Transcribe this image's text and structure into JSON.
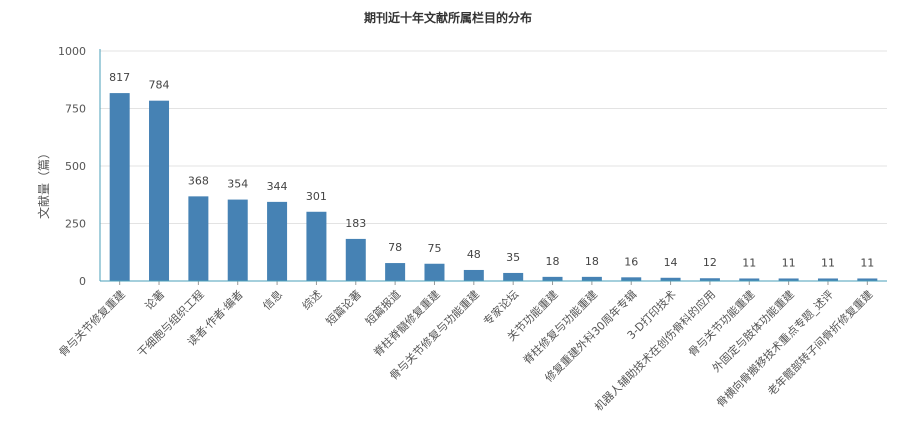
{
  "chart_data": {
    "type": "bar",
    "title": "期刊近十年文献所属栏目的分布",
    "ylabel": "文献量（篇）",
    "xlabel": "",
    "ylim": [
      0,
      1000
    ],
    "yticks": [
      0,
      250,
      500,
      750,
      1000
    ],
    "grid": true,
    "bar_color": "#4682b4",
    "categories": [
      "骨与关节修复重建",
      "论著",
      "干细胞与组织工程",
      "读者·作者·编者",
      "信息",
      "综述",
      "短篇论著",
      "短篇报道",
      "脊柱脊髓修复重建",
      "骨与关节修复与功能重建",
      "专家论坛",
      "关节功能重建",
      "脊柱修复与功能重建",
      "修复重建外科30周年专辑",
      "3-D打印技术",
      "机器人辅助技术在创伤骨科的应用",
      "骨与关节功能重建",
      "外固定与肢体功能重建",
      "骨横向骨搬移技术重点专题_述评",
      "老年髋部转子间骨折修复重建"
    ],
    "values": [
      817,
      784,
      368,
      354,
      344,
      301,
      183,
      78,
      75,
      48,
      35,
      18,
      18,
      16,
      14,
      12,
      11,
      11,
      11,
      11
    ]
  }
}
